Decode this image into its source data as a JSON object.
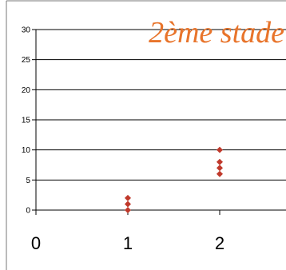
{
  "chart_data": {
    "type": "scatter",
    "title": "2ème stade",
    "xlabel": "",
    "ylabel": "",
    "xlim": [
      0,
      2.5
    ],
    "ylim": [
      0,
      30
    ],
    "x_ticks": [
      "0",
      "1",
      "2"
    ],
    "y_ticks": [
      "0",
      "5",
      "10",
      "15",
      "20",
      "25",
      "30"
    ],
    "grid": true,
    "legend": "none",
    "series": [
      {
        "marker": "diamond",
        "color": "#c0392b",
        "points": [
          {
            "x": 1,
            "y": 0
          },
          {
            "x": 1,
            "y": 1
          },
          {
            "x": 1,
            "y": 2
          },
          {
            "x": 2,
            "y": 6
          },
          {
            "x": 2,
            "y": 7
          },
          {
            "x": 2,
            "y": 8
          },
          {
            "x": 2,
            "y": 10
          }
        ]
      }
    ]
  },
  "colors": {
    "title": "#e8742b",
    "grid": "#000000",
    "marker": "#c0392b",
    "border": "#555555"
  }
}
